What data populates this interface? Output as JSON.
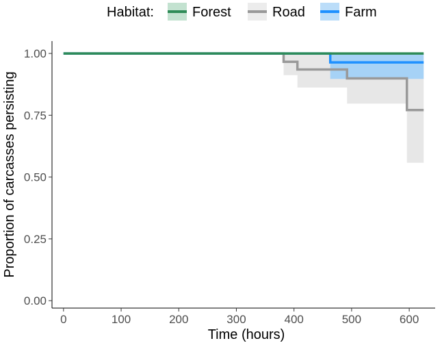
{
  "chart_data": {
    "type": "line",
    "subtype": "step-survival",
    "title": "",
    "xlabel": "Time (hours)",
    "ylabel": "Proportion of carcasses persisting",
    "xlim": [
      -20,
      645
    ],
    "ylim": [
      -0.03,
      1.05
    ],
    "x_ticks": [
      0,
      100,
      200,
      300,
      400,
      500,
      600
    ],
    "y_ticks": [
      0.0,
      0.25,
      0.5,
      0.75,
      1.0
    ],
    "y_tick_labels": [
      "0.00",
      "0.25",
      "0.50",
      "0.75",
      "1.00"
    ],
    "grid": false,
    "legend": {
      "title": "Habitat:",
      "position": "top"
    },
    "series": [
      {
        "name": "Road",
        "color": "#999999",
        "band_color": "#e4e4e4",
        "steps": [
          [
            0,
            1.0
          ],
          [
            382,
            0.966
          ],
          [
            406,
            0.935
          ],
          [
            492,
            0.899
          ],
          [
            596,
            0.771
          ],
          [
            625,
            0.771
          ]
        ],
        "lower": [
          [
            0,
            1.0
          ],
          [
            382,
            0.912
          ],
          [
            406,
            0.862
          ],
          [
            492,
            0.797
          ],
          [
            596,
            0.558
          ],
          [
            625,
            0.558
          ]
        ],
        "upper": [
          [
            0,
            1.0
          ],
          [
            625,
            1.0
          ]
        ]
      },
      {
        "name": "Farm",
        "color": "#1e90ff",
        "band_color": "#9ecff7",
        "steps": [
          [
            0,
            1.0
          ],
          [
            463,
            0.964
          ],
          [
            625,
            0.964
          ]
        ],
        "lower": [
          [
            0,
            1.0
          ],
          [
            463,
            0.897
          ],
          [
            625,
            0.897
          ]
        ],
        "upper": [
          [
            0,
            1.0
          ],
          [
            625,
            1.0
          ]
        ]
      },
      {
        "name": "Forest",
        "color": "#2e8b57",
        "band_color": "#a9d6bc",
        "steps": [
          [
            0,
            1.0
          ],
          [
            625,
            1.0
          ]
        ],
        "lower": [
          [
            0,
            1.0
          ],
          [
            625,
            1.0
          ]
        ],
        "upper": [
          [
            0,
            1.0
          ],
          [
            625,
            1.0
          ]
        ]
      }
    ],
    "legend_order": [
      "Forest",
      "Road",
      "Farm"
    ]
  }
}
